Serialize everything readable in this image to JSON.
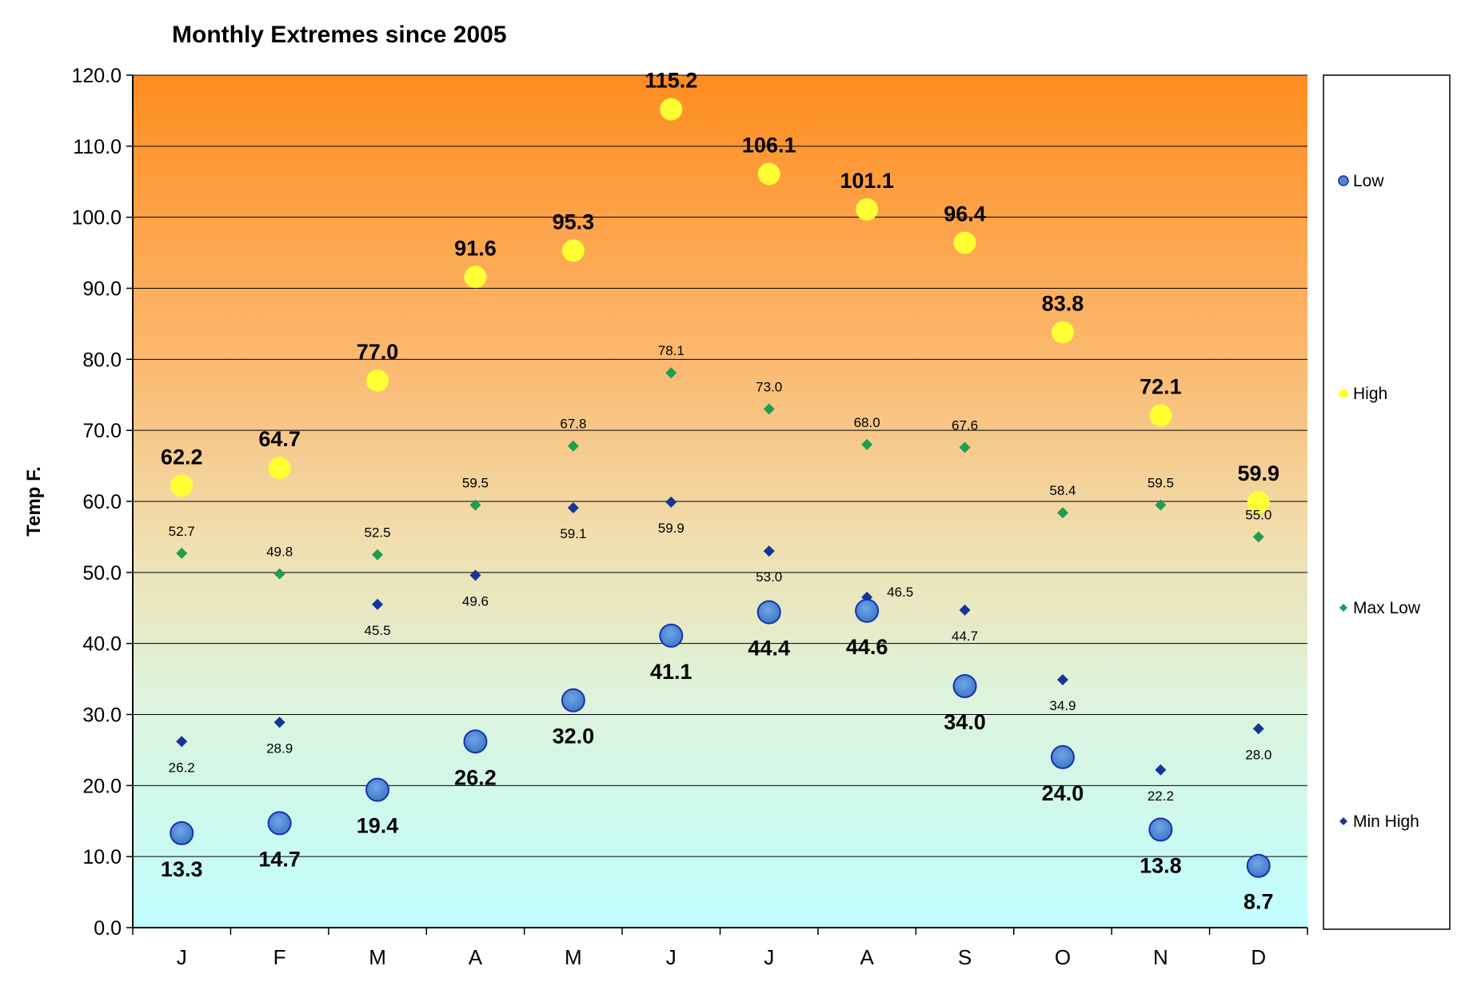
{
  "chart_data": {
    "type": "scatter",
    "title": "Monthly Extremes since 2005",
    "ylabel": "Temp F.",
    "xlabel": "",
    "ylim": [
      0,
      120
    ],
    "y_ticks": [
      "0.0",
      "10.0",
      "20.0",
      "30.0",
      "40.0",
      "50.0",
      "60.0",
      "70.0",
      "80.0",
      "90.0",
      "100.0",
      "110.0",
      "120.0"
    ],
    "categories": [
      "J",
      "F",
      "M",
      "A",
      "M",
      "J",
      "J",
      "A",
      "S",
      "O",
      "N",
      "D"
    ],
    "grid": true,
    "background": "vertical gradient, orange at top to cyan at bottom",
    "legend_position": "right",
    "series": [
      {
        "name": "Low",
        "marker": "circle-large",
        "color": "#4a86cf",
        "values": [
          13.3,
          14.7,
          19.4,
          26.2,
          32.0,
          41.1,
          44.4,
          44.6,
          34.0,
          24.0,
          13.8,
          8.7
        ],
        "labels": [
          "13.3",
          "14.7",
          "19.4",
          "26.2",
          "32.0",
          "41.1",
          "44.4",
          "44.6",
          "34.0",
          "24.0",
          "13.8",
          "8.7"
        ]
      },
      {
        "name": "High",
        "marker": "circle-large",
        "color": "#ffff33",
        "values": [
          62.2,
          64.7,
          77.0,
          91.6,
          95.3,
          115.2,
          106.1,
          101.1,
          96.4,
          83.8,
          72.1,
          59.9
        ],
        "labels": [
          "62.2",
          "64.7",
          "77.0",
          "91.6",
          "95.3",
          "115.2",
          "106.1",
          "101.1",
          "96.4",
          "83.8",
          "72.1",
          "59.9"
        ]
      },
      {
        "name": "Max Low",
        "marker": "diamond",
        "color": "#1e9e50",
        "values": [
          52.7,
          49.8,
          52.5,
          59.5,
          67.8,
          78.1,
          73.0,
          68.0,
          67.6,
          58.4,
          59.5,
          55.0
        ],
        "labels": [
          "52.7",
          "49.8",
          "52.5",
          "59.5",
          "67.8",
          "78.1",
          "73.0",
          "68.0",
          "67.6",
          "58.4",
          "59.5",
          "55.0"
        ]
      },
      {
        "name": "Min High",
        "marker": "diamond",
        "color": "#14359a",
        "values": [
          26.2,
          28.9,
          45.5,
          49.6,
          59.1,
          59.9,
          53.0,
          46.5,
          44.7,
          34.9,
          22.2,
          28.0
        ],
        "labels": [
          "26.2",
          "28.9",
          "45.5",
          "49.6",
          "59.1",
          "59.9",
          "53.0",
          "46.5",
          "44.7",
          "34.9",
          "22.2",
          "28.0"
        ]
      }
    ]
  }
}
